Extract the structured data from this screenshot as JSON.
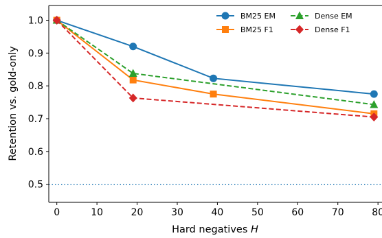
{
  "chart_data": {
    "type": "line",
    "xlabel": "Hard negatives ",
    "xlabel_var": "H",
    "ylabel": "Retention vs. gold-only",
    "xlim": [
      -2,
      81
    ],
    "ylim": [
      0.445,
      1.045
    ],
    "xticks": [
      0,
      10,
      20,
      30,
      40,
      50,
      60,
      70,
      80
    ],
    "yticks": [
      0.5,
      0.6,
      0.7,
      0.8,
      0.9,
      1.0
    ],
    "ytick_labels": [
      "0.5",
      "0.6",
      "0.7",
      "0.8",
      "0.9",
      "1.0"
    ],
    "grid": false,
    "legend_position": "top-right",
    "reference_line": {
      "y": 0.5,
      "style": "dotted",
      "color": "#1f77b4"
    },
    "series": [
      {
        "name": "BM25 EM",
        "color": "#1f77b4",
        "marker": "circle",
        "dash": "solid",
        "x": [
          0,
          19,
          39,
          79
        ],
        "y": [
          1.0,
          0.92,
          0.823,
          0.775
        ]
      },
      {
        "name": "BM25 F1",
        "color": "#ff7f0e",
        "marker": "square",
        "dash": "solid",
        "x": [
          0,
          19,
          39,
          79
        ],
        "y": [
          1.0,
          0.818,
          0.775,
          0.715
        ]
      },
      {
        "name": "Dense EM",
        "color": "#2ca02c",
        "marker": "triangle",
        "dash": "dashed",
        "x": [
          0,
          19,
          79
        ],
        "y": [
          1.0,
          0.838,
          0.743
        ]
      },
      {
        "name": "Dense F1",
        "color": "#d62728",
        "marker": "diamond",
        "dash": "dashed",
        "x": [
          0,
          19,
          79
        ],
        "y": [
          1.0,
          0.763,
          0.705
        ]
      }
    ]
  }
}
